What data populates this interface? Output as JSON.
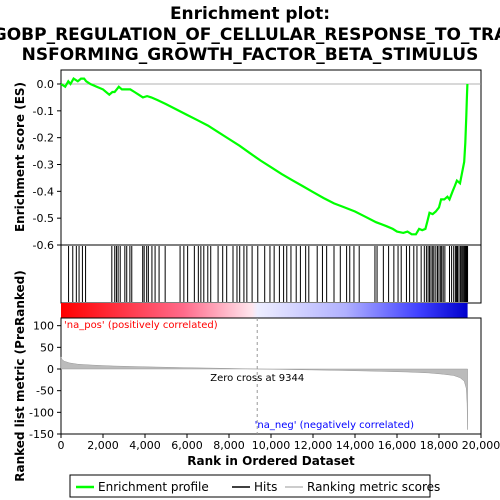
{
  "chart_data": {
    "type": "line",
    "title_line1": "Enrichment plot:",
    "title_line2": "GOBP_REGULATION_OF_CELLULAR_RESPONSE_TO_TRA",
    "title_line3": "NSFORMING_GROWTH_FACTOR_BETA_STIMULUS",
    "es_panel": {
      "ylabel": "Enrichment score (ES)",
      "ylim": [
        -0.6,
        0.03
      ],
      "yticks": [
        0.0,
        -0.1,
        -0.2,
        -0.3,
        -0.4,
        -0.5,
        -0.6
      ],
      "ytick_labels": [
        "0.0",
        "-0.1",
        "-0.2",
        "-0.3",
        "-0.4",
        "-0.5",
        "-0.6"
      ],
      "series_name": "Enrichment profile",
      "color": "#00ff00",
      "points": [
        [
          0,
          0.0
        ],
        [
          200,
          -0.01
        ],
        [
          350,
          0.01
        ],
        [
          450,
          0.0
        ],
        [
          600,
          0.02
        ],
        [
          800,
          0.01
        ],
        [
          950,
          0.02
        ],
        [
          1100,
          0.02
        ],
        [
          1200,
          0.01
        ],
        [
          1400,
          0.0
        ],
        [
          1700,
          -0.01
        ],
        [
          2000,
          -0.02
        ],
        [
          2300,
          -0.04
        ],
        [
          2450,
          -0.03
        ],
        [
          2550,
          -0.03
        ],
        [
          2650,
          -0.02
        ],
        [
          2750,
          -0.01
        ],
        [
          2900,
          -0.02
        ],
        [
          3050,
          -0.02
        ],
        [
          3300,
          -0.02
        ],
        [
          3500,
          -0.03
        ],
        [
          3700,
          -0.04
        ],
        [
          3900,
          -0.05
        ],
        [
          4100,
          -0.045
        ],
        [
          4300,
          -0.05
        ],
        [
          4600,
          -0.06
        ],
        [
          5000,
          -0.075
        ],
        [
          5500,
          -0.095
        ],
        [
          6000,
          -0.115
        ],
        [
          6500,
          -0.135
        ],
        [
          7000,
          -0.155
        ],
        [
          7500,
          -0.18
        ],
        [
          8000,
          -0.205
        ],
        [
          8500,
          -0.23
        ],
        [
          9000,
          -0.258
        ],
        [
          9500,
          -0.285
        ],
        [
          10000,
          -0.31
        ],
        [
          10500,
          -0.335
        ],
        [
          11000,
          -0.358
        ],
        [
          11500,
          -0.38
        ],
        [
          12000,
          -0.403
        ],
        [
          12500,
          -0.425
        ],
        [
          13000,
          -0.445
        ],
        [
          13500,
          -0.46
        ],
        [
          14000,
          -0.475
        ],
        [
          14500,
          -0.495
        ],
        [
          15000,
          -0.515
        ],
        [
          15500,
          -0.53
        ],
        [
          15800,
          -0.54
        ],
        [
          16000,
          -0.55
        ],
        [
          16300,
          -0.555
        ],
        [
          16500,
          -0.55
        ],
        [
          16700,
          -0.56
        ],
        [
          16900,
          -0.56
        ],
        [
          17050,
          -0.54
        ],
        [
          17200,
          -0.545
        ],
        [
          17350,
          -0.54
        ],
        [
          17450,
          -0.51
        ],
        [
          17550,
          -0.48
        ],
        [
          17700,
          -0.485
        ],
        [
          17850,
          -0.475
        ],
        [
          18000,
          -0.46
        ],
        [
          18100,
          -0.43
        ],
        [
          18250,
          -0.43
        ],
        [
          18400,
          -0.42
        ],
        [
          18500,
          -0.43
        ],
        [
          18650,
          -0.4
        ],
        [
          18750,
          -0.38
        ],
        [
          18850,
          -0.36
        ],
        [
          19000,
          -0.37
        ],
        [
          19100,
          -0.33
        ],
        [
          19200,
          -0.29
        ],
        [
          19250,
          -0.22
        ],
        [
          19300,
          -0.12
        ],
        [
          19330,
          -0.05
        ],
        [
          19350,
          0.0
        ]
      ]
    },
    "hits": [
      360,
      560,
      730,
      860,
      1020,
      1170,
      2420,
      2560,
      2640,
      2720,
      2820,
      3040,
      3130,
      3280,
      3370,
      3890,
      3960,
      4080,
      4160,
      4330,
      4480,
      4670,
      4960,
      5670,
      5850,
      6030,
      6350,
      6540,
      6660,
      6800,
      6990,
      7130,
      7480,
      7700,
      7890,
      8190,
      8380,
      8510,
      8710,
      8850,
      9100,
      9370,
      9700,
      9950,
      10150,
      10400,
      10600,
      10750,
      10950,
      11200,
      11400,
      11650,
      11800,
      12200,
      12450,
      12650,
      13000,
      13300,
      13600,
      13750,
      13950,
      14200,
      14950,
      15050,
      15350,
      15600,
      15850,
      16050,
      16200,
      16450,
      16600,
      16800,
      16950,
      17150,
      17300,
      17400,
      17480,
      17550,
      17620,
      17700,
      17760,
      17850,
      17930,
      18000,
      18080,
      18130,
      18200,
      18280,
      18500,
      18600,
      18700,
      18780,
      18830,
      18880,
      18950,
      19020,
      19080,
      19130,
      19180,
      19220,
      19260,
      19300,
      19330,
      19360
    ],
    "rank_panel": {
      "ylabel": "Ranked list metric (PreRanked)",
      "ylim": [
        -150,
        125
      ],
      "yticks": [
        100,
        50,
        0,
        -50,
        -100,
        -150
      ],
      "ytick_labels": [
        "100",
        "50",
        "0",
        "-50",
        "-100",
        "-150"
      ],
      "curve": [
        [
          0,
          28
        ],
        [
          50,
          22
        ],
        [
          150,
          18
        ],
        [
          400,
          14
        ],
        [
          800,
          11
        ],
        [
          1500,
          9
        ],
        [
          2500,
          7
        ],
        [
          4000,
          5
        ],
        [
          6000,
          3
        ],
        [
          8000,
          1.5
        ],
        [
          9344,
          0
        ],
        [
          11000,
          -1.5
        ],
        [
          13000,
          -3
        ],
        [
          15000,
          -5
        ],
        [
          16500,
          -7
        ],
        [
          17500,
          -9
        ],
        [
          18200,
          -12
        ],
        [
          18700,
          -15
        ],
        [
          19000,
          -20
        ],
        [
          19200,
          -28
        ],
        [
          19300,
          -45
        ],
        [
          19340,
          -80
        ],
        [
          19360,
          -140
        ]
      ],
      "zero_cross_label": "Zero cross at 9344",
      "zero_cross": 9344,
      "pos_label": "'na_pos' (positively correlated)",
      "neg_label": "'na_neg' (negatively correlated)"
    },
    "xlabel": "Rank in Ordered Dataset",
    "xlim": [
      0,
      20000
    ],
    "xticks": [
      0,
      2000,
      4000,
      6000,
      8000,
      10000,
      12000,
      14000,
      16000,
      18000,
      20000
    ],
    "xtick_labels": [
      "0",
      "2,000",
      "4,000",
      "6,000",
      "8,000",
      "10,000",
      "12,000",
      "14,000",
      "16,000",
      "18,000",
      "20,000"
    ],
    "n_genes": 19360,
    "legend": [
      {
        "label": "Enrichment profile",
        "color": "#00ff00"
      },
      {
        "label": "Hits",
        "color": "#000000"
      },
      {
        "label": "Ranking metric scores",
        "color": "#bbbbbb"
      }
    ]
  }
}
